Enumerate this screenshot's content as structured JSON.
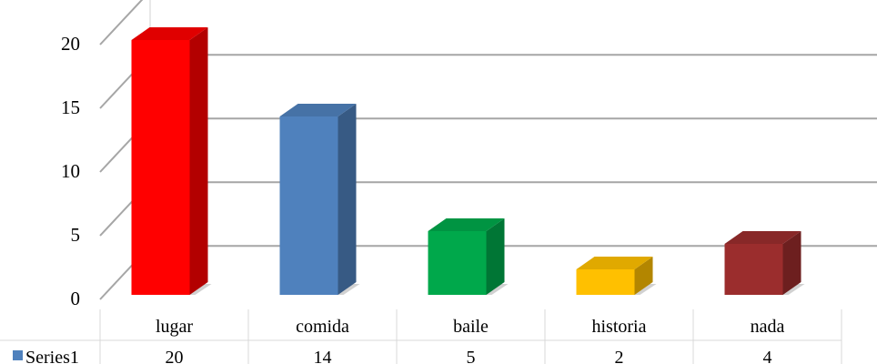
{
  "chart_data": {
    "type": "bar",
    "categories": [
      "lugar",
      "comida",
      "baile",
      "historia",
      "nada"
    ],
    "series": [
      {
        "name": "Series1",
        "values": [
          20,
          14,
          5,
          2,
          4
        ]
      }
    ],
    "bar_colors": [
      "#ff0000",
      "#4f81bd",
      "#00a84b",
      "#ffc000",
      "#9b2d2d"
    ],
    "yticks": [
      0,
      5,
      10,
      15,
      20
    ],
    "ylim": [
      0,
      24
    ],
    "grid": true,
    "three_d": true,
    "legend": "data-table"
  }
}
